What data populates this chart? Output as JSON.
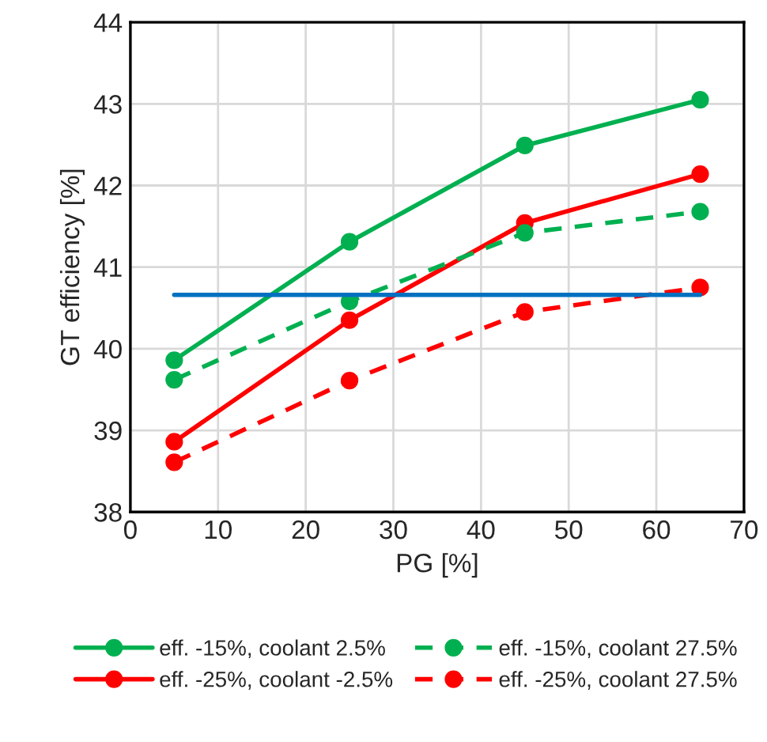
{
  "chart_data": {
    "type": "line",
    "xlabel": "PG [%]",
    "ylabel": "GT efficiency [%]",
    "x": [
      5,
      25,
      45,
      65
    ],
    "xlim": [
      0,
      70
    ],
    "xticks": [
      0,
      10,
      20,
      30,
      40,
      50,
      60,
      70
    ],
    "ylim": [
      38,
      44
    ],
    "yticks": [
      38,
      39,
      40,
      41,
      42,
      43,
      44
    ],
    "grid": true,
    "legend": "bottom",
    "marker": "circle",
    "series": [
      {
        "name": "eff. -15%, coolant 2.5%",
        "color": "#00b050",
        "values": [
          39.86,
          41.31,
          42.49,
          43.05
        ],
        "line_style": "solid"
      },
      {
        "name": "eff. -25%, coolant -2.5%",
        "color": "#ff0000",
        "values": [
          38.86,
          40.35,
          41.54,
          42.14
        ],
        "line_style": "solid"
      },
      {
        "name": "eff. -15%, coolant 27.5%",
        "color": "#00b050",
        "values": [
          39.62,
          40.58,
          41.42,
          41.68
        ],
        "line_style": "dashed"
      },
      {
        "name": "eff. -25%, coolant 27.5%",
        "color": "#ff0000",
        "values": [
          38.61,
          39.61,
          40.45,
          40.75
        ],
        "line_style": "dashed"
      },
      {
        "color": "#0070c0",
        "x": [
          5,
          65
        ],
        "values": [
          40.66,
          40.66
        ],
        "line_style": "solid",
        "marker": "none"
      }
    ]
  }
}
